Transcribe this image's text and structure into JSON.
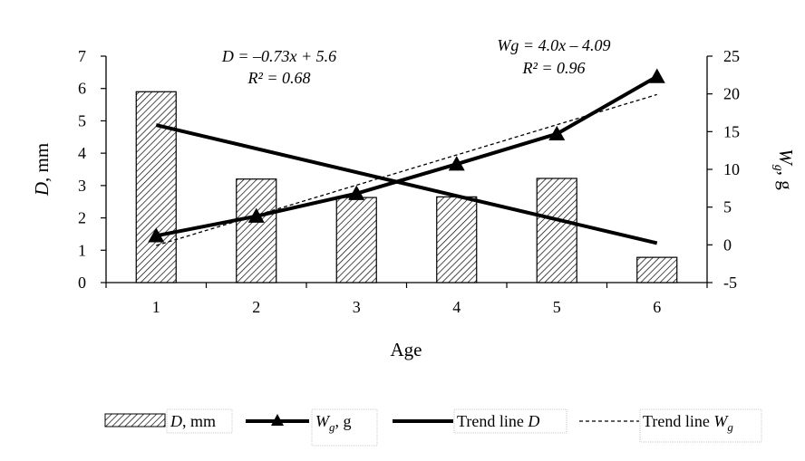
{
  "chart_data": {
    "type": "bar+line",
    "x_label": "Age",
    "categories": [
      "1",
      "2",
      "3",
      "4",
      "5",
      "6"
    ],
    "left_axis": {
      "label_var": "D",
      "label_unit": ", mm",
      "ylim": [
        0,
        7
      ],
      "ticks": [
        "0",
        "1",
        "2",
        "3",
        "4",
        "5",
        "6",
        "7"
      ]
    },
    "right_axis": {
      "label_var": "W",
      "label_sub": "g",
      "label_unit": ", g",
      "ylim": [
        -5,
        25
      ],
      "ticks": [
        "-5",
        "0",
        "5",
        "10",
        "15",
        "20",
        "25"
      ]
    },
    "series": [
      {
        "name": "D, mm",
        "type": "bar",
        "axis": "left",
        "values": [
          5.9,
          3.2,
          2.63,
          2.65,
          3.22,
          0.78
        ]
      },
      {
        "name": "Wg, g",
        "type": "line",
        "marker": "triangle",
        "axis": "right",
        "values": [
          1.2,
          3.8,
          6.8,
          10.7,
          14.7,
          22.3
        ]
      },
      {
        "name": "Trend line D",
        "type": "trend",
        "axis": "left",
        "slope": -0.73,
        "intercept": 5.6
      },
      {
        "name": "Trend line Wg",
        "type": "trend",
        "style": "dashed",
        "axis": "right",
        "slope": 4.0,
        "intercept": -4.09
      }
    ],
    "annotations": {
      "d_equation": "D = –0.73x + 5.6",
      "d_r2": "R² = 0.68",
      "w_equation": "Wg = 4.0x – 4.09",
      "w_r2": "R² = 0.96"
    },
    "legend": {
      "position": "bottom",
      "items": [
        {
          "var": "D",
          "sub": "",
          "text": ", mm"
        },
        {
          "var": "W",
          "sub": "g",
          "text": ", g"
        },
        {
          "var": "",
          "sub": "",
          "text": "Trend line ",
          "trail_var": "D"
        },
        {
          "var": "",
          "sub": "",
          "text": "Trend line ",
          "trail_var": "W",
          "trail_sub": "g"
        }
      ]
    }
  }
}
